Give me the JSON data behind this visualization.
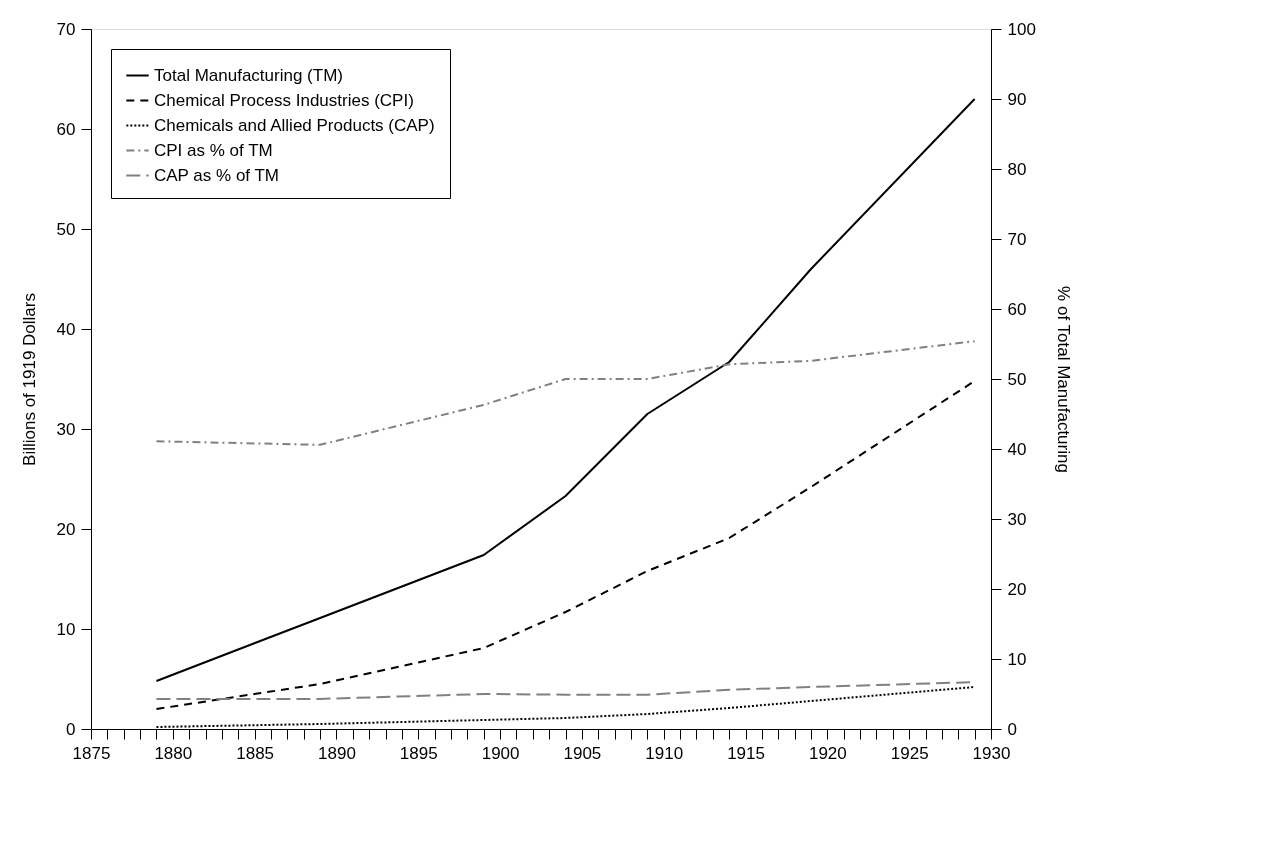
{
  "chart_data": {
    "type": "line",
    "ylabel": "Billions of 1919 Dollars",
    "y2label": "% of Total Manufacturing",
    "x": [
      1879,
      1889,
      1899,
      1904,
      1909,
      1914,
      1919,
      1929
    ],
    "series": [
      {
        "name": "Total Manufacturing (TM)",
        "color": "#000000",
        "line_style": "solid",
        "values": [
          4.8,
          11.1,
          17.4,
          23.3,
          31.5,
          36.7,
          46.0,
          63.0
        ]
      },
      {
        "name": "Chemical Process Industries (CPI)",
        "color": "#000000",
        "line_style": "dashed",
        "values": [
          2.0,
          4.5,
          8.1,
          11.7,
          15.8,
          19.1,
          24.2,
          34.8
        ]
      },
      {
        "name": "Chemicals and Allied Products (CAP)",
        "color": "#000000",
        "line_style": "dotted",
        "values": [
          0.2,
          0.5,
          0.9,
          1.1,
          1.5,
          2.1,
          2.8,
          4.2
        ]
      },
      {
        "name": "CPI as % of TM",
        "color": "#808080",
        "line_style": "dashdot",
        "axis": "y2",
        "values": [
          41.1,
          40.6,
          46.3,
          50.0,
          50.0,
          52.1,
          52.6,
          55.4
        ]
      },
      {
        "name": "CAP as % of TM",
        "color": "#808080",
        "line_style": "longdash",
        "axis": "y2",
        "values": [
          4.3,
          4.3,
          5.0,
          4.9,
          4.9,
          5.6,
          6.0,
          6.7
        ]
      }
    ],
    "xlim": [
      1875,
      1930
    ],
    "xticks": [
      1875,
      {
        "value": 1876,
        "label": null
      },
      {
        "value": 1877,
        "label": null
      },
      {
        "value": 1878,
        "label": null
      },
      {
        "value": 1879,
        "label": null
      },
      1880,
      {
        "value": 1881,
        "label": null
      },
      {
        "value": 1882,
        "label": null
      },
      {
        "value": 1883,
        "label": null
      },
      {
        "value": 1884,
        "label": null
      },
      1885,
      {
        "value": 1886,
        "label": null
      },
      {
        "value": 1887,
        "label": null
      },
      {
        "value": 1888,
        "label": null
      },
      {
        "value": 1889,
        "label": null
      },
      1890,
      {
        "value": 1891,
        "label": null
      },
      {
        "value": 1892,
        "label": null
      },
      {
        "value": 1893,
        "label": null
      },
      {
        "value": 1894,
        "label": null
      },
      1895,
      {
        "value": 1896,
        "label": null
      },
      {
        "value": 1897,
        "label": null
      },
      {
        "value": 1898,
        "label": null
      },
      {
        "value": 1899,
        "label": null
      },
      1900,
      {
        "value": 1901,
        "label": null
      },
      {
        "value": 1902,
        "label": null
      },
      {
        "value": 1903,
        "label": null
      },
      {
        "value": 1904,
        "label": null
      },
      1905,
      {
        "value": 1906,
        "label": null
      },
      {
        "value": 1907,
        "label": null
      },
      {
        "value": 1908,
        "label": null
      },
      {
        "value": 1909,
        "label": null
      },
      1910,
      {
        "value": 1911,
        "label": null
      },
      {
        "value": 1912,
        "label": null
      },
      {
        "value": 1913,
        "label": null
      },
      {
        "value": 1914,
        "label": null
      },
      1915,
      {
        "value": 1916,
        "label": null
      },
      {
        "value": 1917,
        "label": null
      },
      {
        "value": 1918,
        "label": null
      },
      {
        "value": 1919,
        "label": null
      },
      1920,
      {
        "value": 1921,
        "label": null
      },
      {
        "value": 1922,
        "label": null
      },
      {
        "value": 1923,
        "label": null
      },
      {
        "value": 1924,
        "label": null
      },
      1925,
      {
        "value": 1926,
        "label": null
      },
      {
        "value": 1927,
        "label": null
      },
      {
        "value": 1928,
        "label": null
      },
      {
        "value": 1929,
        "label": null
      },
      1930
    ],
    "ylim": [
      0,
      70
    ],
    "yticks": [
      0,
      10,
      20,
      30,
      40,
      50,
      60,
      70
    ],
    "y2lim": [
      0,
      100
    ],
    "y2ticks": [
      0,
      10,
      20,
      30,
      40,
      50,
      60,
      70,
      80,
      90,
      100
    ],
    "grid": false,
    "legend": "top left",
    "marker": "none"
  }
}
